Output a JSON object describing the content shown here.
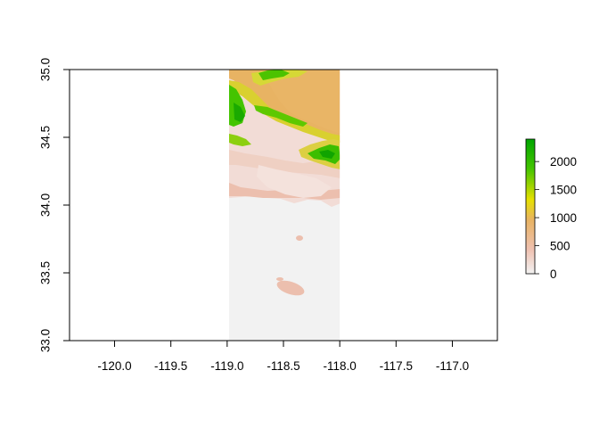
{
  "chart_data": {
    "type": "heatmap",
    "title": "",
    "xlabel": "",
    "ylabel": "",
    "xlim": [
      -120.4,
      -116.6
    ],
    "ylim": [
      33.0,
      35.0
    ],
    "x_ticks": [
      "-120.0",
      "-119.5",
      "-119.0",
      "-118.5",
      "-118.0",
      "-117.5",
      "-117.0"
    ],
    "x_tick_values": [
      -120.0,
      -119.5,
      -119.0,
      -118.5,
      -118.0,
      -117.5,
      -117.0
    ],
    "y_ticks": [
      "33.0",
      "33.5",
      "34.0",
      "34.5",
      "35.0"
    ],
    "y_tick_values": [
      33.0,
      33.5,
      34.0,
      34.5,
      35.0
    ],
    "raster_extent": {
      "xmin": -119.0,
      "xmax": -118.0,
      "ymin": 33.0,
      "ymax": 35.0
    },
    "legend": {
      "placement": "right",
      "min": 0,
      "max": 2400,
      "ticks": [
        "0",
        "500",
        "1000",
        "1500",
        "2000"
      ],
      "tick_values": [
        0,
        500,
        1000,
        1500,
        2000
      ]
    },
    "colors": {
      "ocean": "#f2f2f2",
      "low": "#f2f2f2",
      "low_mid": "#efc1b1",
      "mid": "#e8b363",
      "mid_high": "#e6e000",
      "high": "#44c400",
      "peak": "#00a600"
    }
  }
}
